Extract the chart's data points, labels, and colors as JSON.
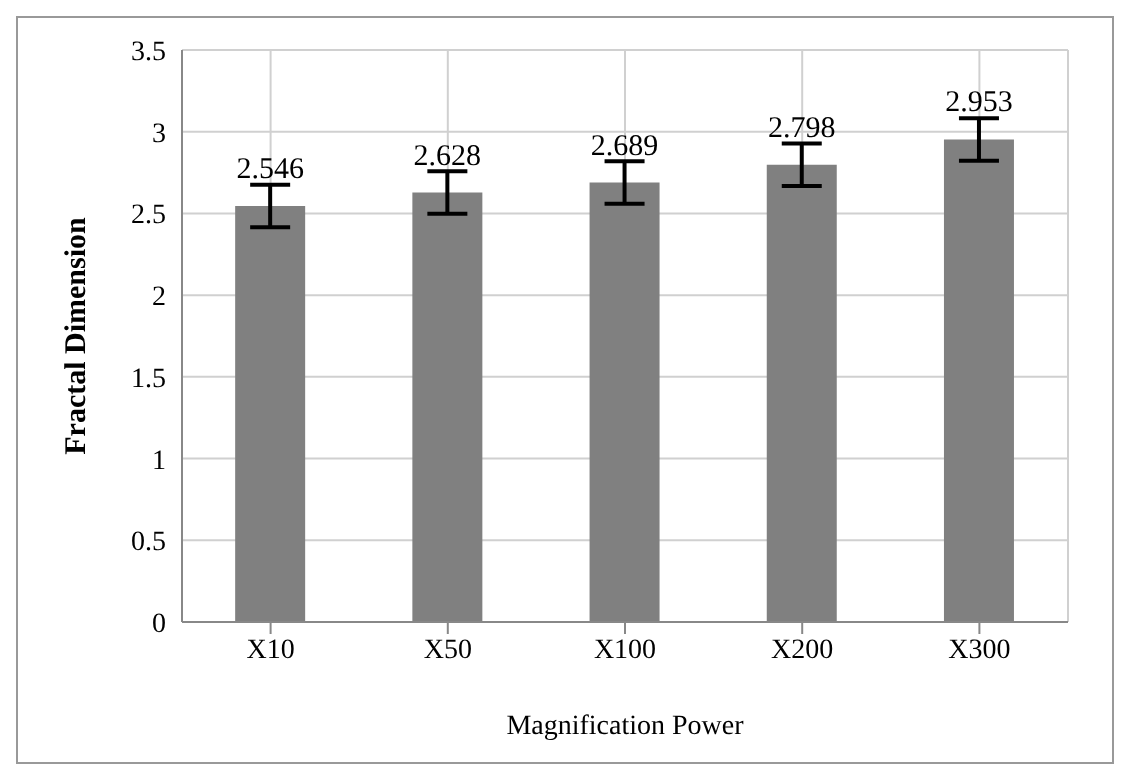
{
  "chart_data": {
    "type": "bar",
    "xlabel": "Magnification Power",
    "ylabel": "Fractal Dimension",
    "categories": [
      "X10",
      "X50",
      "X100",
      "X200",
      "X300"
    ],
    "values": [
      2.546,
      2.628,
      2.689,
      2.798,
      2.953
    ],
    "errors": [
      0.13,
      0.13,
      0.13,
      0.13,
      0.13
    ],
    "color": "#808080",
    "data_labels": true,
    "ylim": [
      0,
      3.5
    ],
    "yticks": [
      0,
      0.5,
      1,
      1.5,
      2,
      2.5,
      3,
      3.5
    ],
    "grid": true
  }
}
